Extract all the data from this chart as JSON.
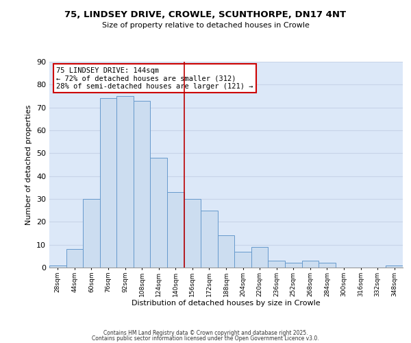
{
  "title": "75, LINDSEY DRIVE, CROWLE, SCUNTHORPE, DN17 4NT",
  "subtitle": "Size of property relative to detached houses in Crowle",
  "xlabel": "Distribution of detached houses by size in Crowle",
  "ylabel": "Number of detached properties",
  "bin_labels": [
    "28sqm",
    "44sqm",
    "60sqm",
    "76sqm",
    "92sqm",
    "108sqm",
    "124sqm",
    "140sqm",
    "156sqm",
    "172sqm",
    "188sqm",
    "204sqm",
    "220sqm",
    "236sqm",
    "252sqm",
    "268sqm",
    "284sqm",
    "300sqm",
    "316sqm",
    "332sqm",
    "348sqm"
  ],
  "bar_heights": [
    1,
    8,
    30,
    74,
    75,
    73,
    48,
    33,
    30,
    25,
    14,
    7,
    9,
    3,
    2,
    3,
    2,
    0,
    0,
    0,
    1
  ],
  "bar_color": "#ccddf0",
  "bar_edge_color": "#6699cc",
  "vline_x_index": 7.5,
  "vline_color": "#bb0000",
  "annotation_text": "75 LINDSEY DRIVE: 144sqm\n← 72% of detached houses are smaller (312)\n28% of semi-detached houses are larger (121) →",
  "annotation_box_edge": "#cc0000",
  "ylim": [
    0,
    90
  ],
  "yticks": [
    0,
    10,
    20,
    30,
    40,
    50,
    60,
    70,
    80,
    90
  ],
  "grid_color": "#c8d4e8",
  "background_color": "#dce8f8",
  "footer_line1": "Contains HM Land Registry data © Crown copyright and database right 2025.",
  "footer_line2": "Contains public sector information licensed under the Open Government Licence v3.0."
}
